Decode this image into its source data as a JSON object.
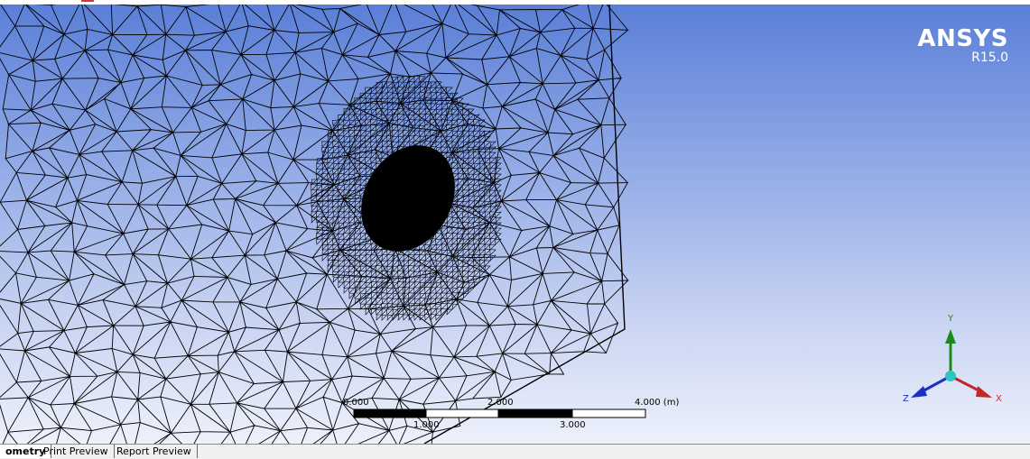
{
  "app": {
    "brand_name": "ANSYS",
    "brand_version": "R15.0"
  },
  "viewport": {
    "content": "tetrahedral mesh wireframe with refined region",
    "background_top": "#5a7fd7",
    "background_bottom": "#eef1fb",
    "mesh_color": "#000000"
  },
  "scale_bar": {
    "unit": "(m)",
    "top_labels": [
      "0.000",
      "2.000",
      "4.000 (m)"
    ],
    "bottom_labels": [
      "1.000",
      "3.000"
    ]
  },
  "triad": {
    "x_label": "X",
    "y_label": "Y",
    "z_label": "Z",
    "x_color": "#c0282a",
    "y_color": "#1a8a1a",
    "z_color": "#1c2fc4",
    "center_color": "#2ec4c4"
  },
  "tabs": [
    {
      "label": "ometry",
      "active": true
    },
    {
      "label": "Print Preview",
      "active": false
    },
    {
      "label": "Report Preview",
      "active": false
    }
  ]
}
